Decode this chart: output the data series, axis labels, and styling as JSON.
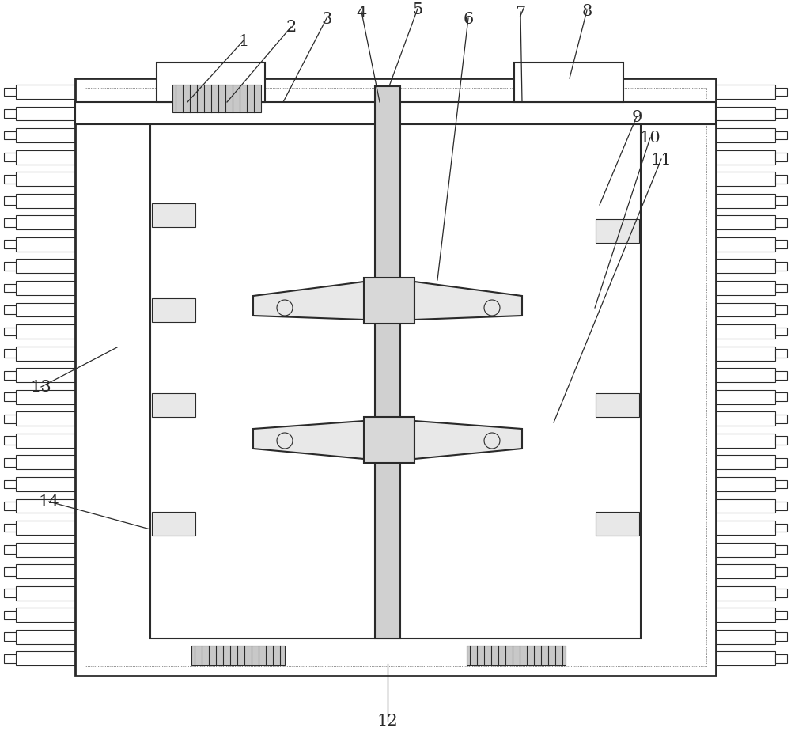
{
  "bg_color": "#ffffff",
  "line_color": "#2a2a2a",
  "lw_thick": 2.0,
  "lw_main": 1.5,
  "lw_thin": 0.8,
  "ann_data": [
    [
      "1",
      308,
      52,
      237,
      130
    ],
    [
      "2",
      368,
      35,
      287,
      130
    ],
    [
      "3",
      413,
      24,
      358,
      130
    ],
    [
      "4",
      457,
      16,
      480,
      130
    ],
    [
      "5",
      528,
      12,
      492,
      110
    ],
    [
      "6",
      592,
      24,
      553,
      355
    ],
    [
      "7",
      658,
      16,
      660,
      130
    ],
    [
      "8",
      742,
      14,
      720,
      100
    ],
    [
      "9",
      805,
      148,
      758,
      260
    ],
    [
      "10",
      822,
      175,
      752,
      390
    ],
    [
      "11",
      836,
      202,
      700,
      535
    ],
    [
      "12",
      490,
      912,
      490,
      840
    ],
    [
      "13",
      52,
      490,
      148,
      440
    ],
    [
      "14",
      62,
      635,
      190,
      670
    ]
  ]
}
